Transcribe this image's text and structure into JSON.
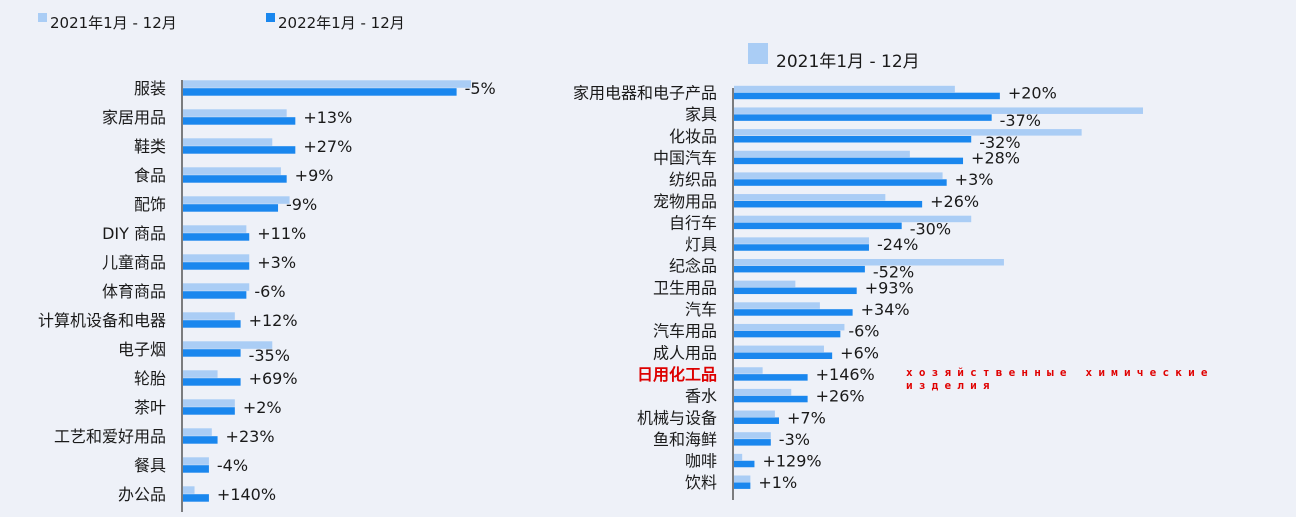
{
  "colors": {
    "background": "#eef1f8",
    "series_2021": "#aacdf5",
    "series_2022": "#1a87ee",
    "axis": "#555555",
    "text": "#1a1a1a",
    "highlight": "#dd0000"
  },
  "annotation": "хозяйственные химические изделия",
  "chart_data": [
    {
      "type": "bar",
      "orientation": "horizontal",
      "legend": {
        "placement": "top-left",
        "items": [
          {
            "label": "2021年1月 - 12月",
            "color": "#aacdf5"
          },
          {
            "label": "2022年1月 - 12月",
            "color": "#1a87ee"
          }
        ]
      },
      "categories": [
        "服装",
        "家居用品",
        "鞋类",
        "食品",
        "配饰",
        "DIY 商品",
        "儿童商品",
        "体育商品",
        "计算机设备和电器",
        "电子烟",
        "轮胎",
        "茶叶",
        "工艺和爱好用品",
        "餐具",
        "办公品"
      ],
      "series": [
        {
          "name": "2021年1月 - 12月",
          "values": [
            100,
            36,
            31,
            34,
            37,
            22,
            23,
            23,
            18,
            31,
            12,
            18,
            10,
            9,
            4
          ]
        },
        {
          "name": "2022年1月 - 12月",
          "values": [
            95,
            39,
            39,
            36,
            33,
            23,
            23,
            22,
            20,
            20,
            20,
            18,
            12,
            9,
            9
          ]
        }
      ],
      "data_labels": [
        "-5%",
        "+13%",
        "+27%",
        "+9%",
        "-9%",
        "+11%",
        "+3%",
        "-6%",
        "+12%",
        "-35%",
        "+69%",
        "+2%",
        "+23%",
        "-4%",
        "+140%"
      ],
      "xlim": [
        0,
        100
      ],
      "grid": false
    },
    {
      "type": "bar",
      "orientation": "horizontal",
      "legend": {
        "placement": "top",
        "items": [
          {
            "label": "2021年1月 - 12月",
            "color": "#aacdf5"
          }
        ]
      },
      "categories": [
        "家用电器和电子产品",
        "家具",
        "化妆品",
        "中国汽车",
        "纺织品",
        "宠物用品",
        "自行车",
        "灯具",
        "纪念品",
        "卫生用品",
        "汽车",
        "汽车用品",
        "成人用品",
        "日用化工品",
        "香水",
        "机械与设备",
        "鱼和海鲜",
        "咖啡",
        "饮料"
      ],
      "highlight_category": "日用化工品",
      "series": [
        {
          "name": "2021年1月 - 12月",
          "values": [
            54,
            100,
            85,
            43,
            51,
            37,
            58,
            33,
            66,
            15,
            21,
            27,
            22,
            7,
            14,
            10,
            9,
            2,
            4
          ]
        },
        {
          "name": "2022年1月 - 12月",
          "values": [
            65,
            63,
            58,
            56,
            52,
            46,
            41,
            33,
            32,
            30,
            29,
            26,
            24,
            18,
            18,
            11,
            9,
            5,
            4
          ]
        }
      ],
      "data_labels": [
        "+20%",
        "-37%",
        "-32%",
        "+28%",
        "+3%",
        "+26%",
        "-30%",
        "-24%",
        "-52%",
        "+93%",
        "+34%",
        "-6%",
        "+6%",
        "+146%",
        "+26%",
        "+7%",
        "-3%",
        "+129%",
        "+1%"
      ],
      "xlim": [
        0,
        100
      ],
      "grid": false
    }
  ]
}
